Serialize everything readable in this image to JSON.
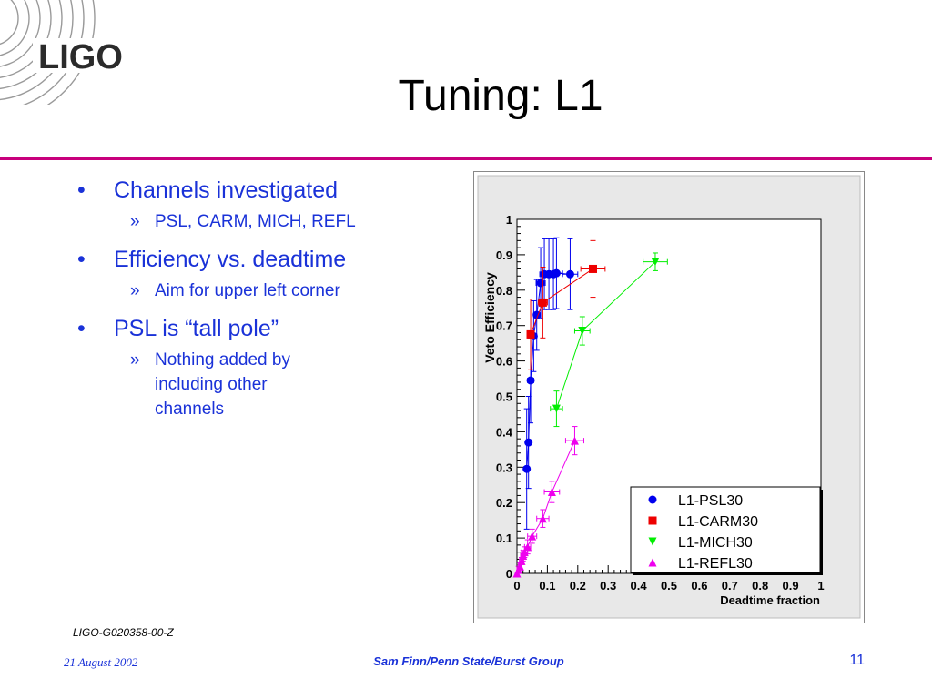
{
  "header": {
    "logo_text": "LIGO",
    "title": "Tuning: L1"
  },
  "bullets": [
    {
      "text": "Channels investigated",
      "sub": [
        "PSL, CARM, MICH, REFL"
      ]
    },
    {
      "text": "Efficiency vs. deadtime",
      "sub": [
        "Aim for upper left corner"
      ]
    },
    {
      "text": "PSL is “tall pole”",
      "sub": [
        "Nothing added by including other channels"
      ]
    }
  ],
  "bullet_marker": "•",
  "sub_marker": "»",
  "footer": {
    "doc_id": "LIGO-G020358-00-Z",
    "date": "21 August 2002",
    "author": "Sam Finn/Penn State/Burst Group",
    "page": "11"
  },
  "colors": {
    "accent_rule": "#c8007c",
    "text_blue": "#1a32d8",
    "psl": "#0000ee",
    "carm": "#ee0000",
    "mich": "#00ee00",
    "refl": "#ee00ee"
  },
  "chart_data": {
    "type": "scatter",
    "xlabel": "Deadtime fraction",
    "ylabel": "Veto Efficiency",
    "xlim": [
      0,
      1
    ],
    "ylim": [
      0,
      1
    ],
    "xticks": [
      "0",
      "0.1",
      "0.2",
      "0.3",
      "0.4",
      "0.5",
      "0.6",
      "0.7",
      "0.8",
      "0.9",
      "1"
    ],
    "yticks": [
      "0",
      "0.1",
      "0.2",
      "0.3",
      "0.4",
      "0.5",
      "0.6",
      "0.7",
      "0.8",
      "0.9",
      "1"
    ],
    "legend_position": "bottom-right",
    "series": [
      {
        "name": "L1-PSL30",
        "marker": "circle",
        "color": "#0000ee",
        "points": [
          {
            "x": 0.032,
            "y": 0.295,
            "ey": 0.17,
            "ex": 0.005
          },
          {
            "x": 0.038,
            "y": 0.37,
            "ey": 0.13,
            "ex": 0.005
          },
          {
            "x": 0.045,
            "y": 0.545,
            "ey": 0.12,
            "ex": 0.01
          },
          {
            "x": 0.055,
            "y": 0.67,
            "ey": 0.1,
            "ex": 0.01
          },
          {
            "x": 0.065,
            "y": 0.73,
            "ey": 0.1,
            "ex": 0.01
          },
          {
            "x": 0.078,
            "y": 0.82,
            "ey": 0.1,
            "ex": 0.015
          },
          {
            "x": 0.09,
            "y": 0.845,
            "ey": 0.1,
            "ex": 0.015
          },
          {
            "x": 0.105,
            "y": 0.845,
            "ey": 0.1,
            "ex": 0.015
          },
          {
            "x": 0.12,
            "y": 0.845,
            "ey": 0.1,
            "ex": 0.015
          },
          {
            "x": 0.13,
            "y": 0.848,
            "ey": 0.1,
            "ex": 0.02
          },
          {
            "x": 0.175,
            "y": 0.845,
            "ey": 0.1,
            "ex": 0.025
          }
        ]
      },
      {
        "name": "L1-CARM30",
        "marker": "square",
        "color": "#ee0000",
        "points": [
          {
            "x": 0.045,
            "y": 0.675,
            "ey": 0.1,
            "ex": 0.01
          },
          {
            "x": 0.085,
            "y": 0.765,
            "ey": 0.1,
            "ex": 0.015
          },
          {
            "x": 0.25,
            "y": 0.86,
            "ey": 0.08,
            "ex": 0.04
          }
        ]
      },
      {
        "name": "L1-MICH30",
        "marker": "triangle-down",
        "color": "#00ee00",
        "points": [
          {
            "x": 0.13,
            "y": 0.465,
            "ey": 0.05,
            "ex": 0.02
          },
          {
            "x": 0.215,
            "y": 0.685,
            "ey": 0.04,
            "ex": 0.025
          },
          {
            "x": 0.455,
            "y": 0.88,
            "ey": 0.025,
            "ex": 0.04
          }
        ]
      },
      {
        "name": "L1-REFL30",
        "marker": "triangle-up",
        "color": "#ee00ee",
        "points": [
          {
            "x": 0.0,
            "y": 0.0,
            "ey": 0.0,
            "ex": 0.0
          },
          {
            "x": 0.005,
            "y": 0.01,
            "ey": 0.01,
            "ex": 0.005
          },
          {
            "x": 0.01,
            "y": 0.02,
            "ey": 0.01,
            "ex": 0.005
          },
          {
            "x": 0.015,
            "y": 0.035,
            "ey": 0.01,
            "ex": 0.007
          },
          {
            "x": 0.02,
            "y": 0.05,
            "ey": 0.015,
            "ex": 0.008
          },
          {
            "x": 0.025,
            "y": 0.06,
            "ey": 0.015,
            "ex": 0.01
          },
          {
            "x": 0.035,
            "y": 0.075,
            "ey": 0.02,
            "ex": 0.01
          },
          {
            "x": 0.05,
            "y": 0.105,
            "ey": 0.02,
            "ex": 0.015
          },
          {
            "x": 0.085,
            "y": 0.155,
            "ey": 0.025,
            "ex": 0.02
          },
          {
            "x": 0.115,
            "y": 0.23,
            "ey": 0.03,
            "ex": 0.025
          },
          {
            "x": 0.19,
            "y": 0.375,
            "ey": 0.04,
            "ex": 0.03
          }
        ]
      }
    ]
  }
}
